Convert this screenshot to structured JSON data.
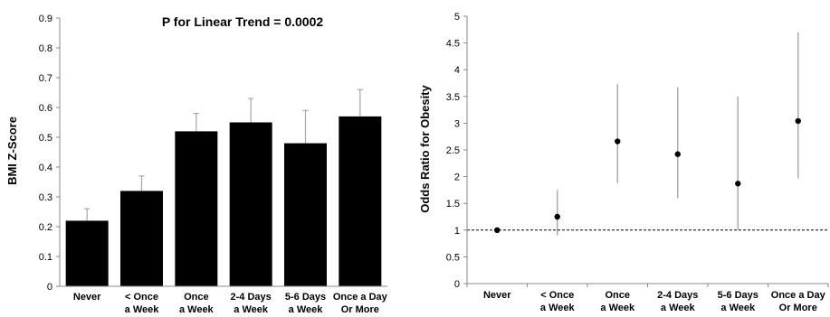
{
  "chart_data": [
    {
      "type": "bar",
      "title": "P for Linear Trend = 0.0002",
      "xlabel": "",
      "ylabel": "BMI Z-Score",
      "ylim": [
        0,
        0.9
      ],
      "yticks": [
        "0",
        "0.1",
        "0.2",
        "0.3",
        "0.4",
        "0.5",
        "0.6",
        "0.7",
        "0.8",
        "0.9"
      ],
      "categories": [
        [
          "Never"
        ],
        [
          "< Once",
          "a Week"
        ],
        [
          "Once",
          "a Week"
        ],
        [
          "2-4 Days",
          "a Week"
        ],
        [
          "5-6 Days",
          "a Week"
        ],
        [
          "Once a Day",
          "Or More"
        ]
      ],
      "values": [
        0.22,
        0.32,
        0.52,
        0.55,
        0.48,
        0.57
      ],
      "error_upper": [
        0.26,
        0.37,
        0.58,
        0.63,
        0.59,
        0.66
      ],
      "bar_color": "#000000",
      "error_color": "#a6a6a6",
      "grid": false
    },
    {
      "type": "scatter",
      "title": "",
      "xlabel": "",
      "ylabel": "Odds Ratio for Obesity",
      "ylim": [
        0,
        5
      ],
      "yticks": [
        "0",
        "0.5",
        "1",
        "1.5",
        "2",
        "2.5",
        "3",
        "3.5",
        "4",
        "4.5",
        "5"
      ],
      "categories": [
        [
          "Never"
        ],
        [
          "< Once",
          "a Week"
        ],
        [
          "Once",
          "a Week"
        ],
        [
          "2-4 Days",
          "a Week"
        ],
        [
          "5-6 Days",
          "a Week"
        ],
        [
          "Once a Day",
          "Or More"
        ]
      ],
      "values": [
        1.0,
        1.25,
        2.66,
        2.42,
        1.87,
        3.04
      ],
      "ci_lower": [
        1.0,
        0.9,
        1.88,
        1.6,
        1.0,
        1.97
      ],
      "ci_upper": [
        1.0,
        1.75,
        3.73,
        3.67,
        3.5,
        4.7
      ],
      "reference_line": 1,
      "point_color": "#000000",
      "ci_color": "#a6a6a6",
      "grid": false
    }
  ]
}
